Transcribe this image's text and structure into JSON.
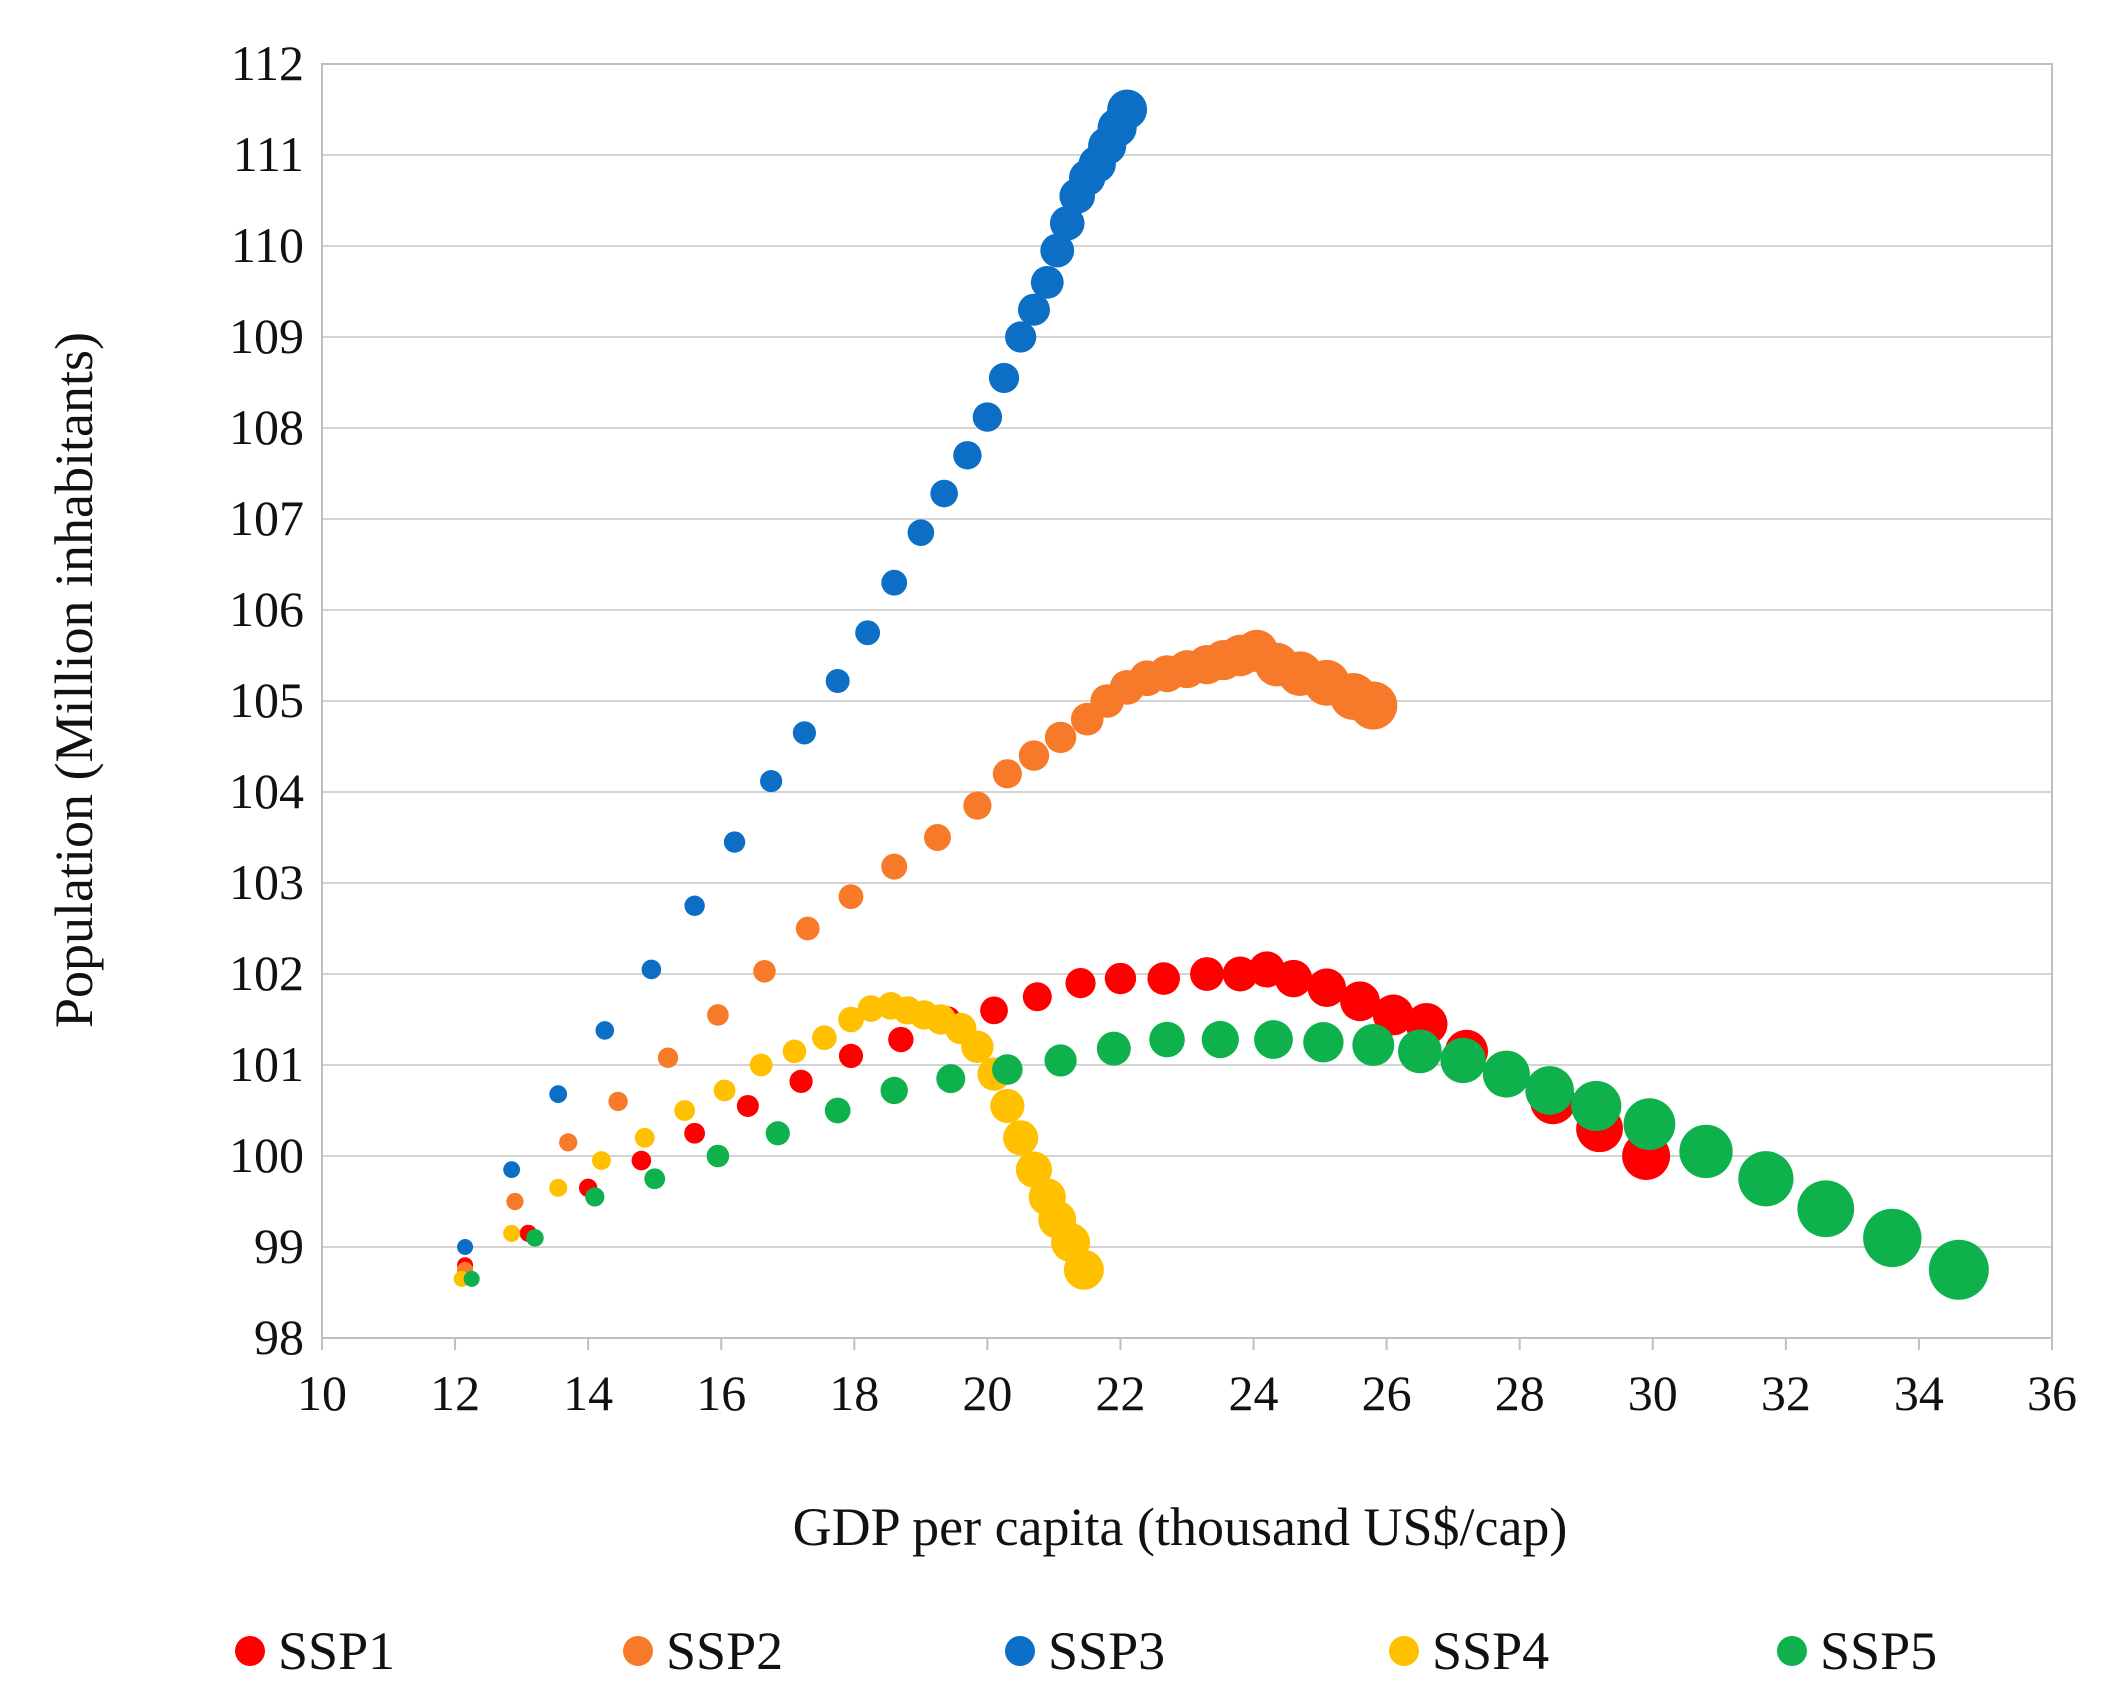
{
  "chart_data": {
    "type": "scatter",
    "title": "",
    "xlabel": "GDP per capita (thousand US$/cap)",
    "ylabel": "Population (Million inhabitants)",
    "xlim": [
      10,
      36
    ],
    "ylim": [
      98,
      112
    ],
    "xticks": [
      "10",
      "12",
      "14",
      "16",
      "18",
      "20",
      "22",
      "24",
      "26",
      "28",
      "30",
      "32",
      "34",
      "36"
    ],
    "yticks": [
      "98",
      "99",
      "100",
      "101",
      "102",
      "103",
      "104",
      "105",
      "106",
      "107",
      "108",
      "109",
      "110",
      "111",
      "112"
    ],
    "grid": "horizontal",
    "legend_position": "bottom",
    "marker_size_note": "marker size grows with time step",
    "series": [
      {
        "name": "SSP1",
        "color": "#ff0000",
        "x": [
          12.15,
          13.1,
          14.0,
          14.8,
          15.6,
          16.4,
          17.2,
          17.95,
          18.7,
          19.4,
          20.1,
          20.75,
          21.4,
          22.0,
          22.65,
          23.3,
          23.8,
          24.2,
          24.6,
          25.1,
          25.6,
          26.1,
          26.6,
          27.2,
          27.8,
          28.5,
          29.2,
          29.9
        ],
        "y": [
          98.8,
          99.15,
          99.65,
          99.95,
          100.25,
          100.55,
          100.82,
          101.1,
          101.28,
          101.5,
          101.6,
          101.75,
          101.9,
          101.95,
          101.95,
          102.0,
          102.0,
          102.05,
          101.95,
          101.85,
          101.7,
          101.55,
          101.45,
          101.15,
          100.9,
          100.6,
          100.3,
          100.0
        ]
      },
      {
        "name": "SSP2",
        "color": "#f77a2b",
        "x": [
          12.15,
          12.9,
          13.7,
          14.45,
          15.2,
          15.95,
          16.65,
          17.3,
          17.95,
          18.6,
          19.25,
          19.85,
          20.3,
          20.7,
          21.1,
          21.5,
          21.8,
          22.1,
          22.4,
          22.7,
          23.0,
          23.3,
          23.55,
          23.8,
          24.05,
          24.35,
          24.7,
          25.1,
          25.5,
          25.8
        ],
        "y": [
          98.75,
          99.5,
          100.15,
          100.6,
          101.08,
          101.55,
          102.03,
          102.5,
          102.85,
          103.18,
          103.5,
          103.85,
          104.2,
          104.4,
          104.6,
          104.8,
          105.0,
          105.15,
          105.25,
          105.3,
          105.35,
          105.4,
          105.45,
          105.5,
          105.55,
          105.4,
          105.3,
          105.2,
          105.05,
          104.95
        ]
      },
      {
        "name": "SSP3",
        "color": "#0d6ec6",
        "x": [
          12.15,
          12.85,
          13.55,
          14.25,
          14.95,
          15.6,
          16.2,
          16.75,
          17.25,
          17.75,
          18.2,
          18.6,
          19.0,
          19.35,
          19.7,
          20.0,
          20.25,
          20.5,
          20.7,
          20.9,
          21.05,
          21.2,
          21.35,
          21.5,
          21.65,
          21.8,
          21.95,
          22.1
        ],
        "y": [
          99.0,
          99.85,
          100.68,
          101.38,
          102.05,
          102.75,
          103.45,
          104.12,
          104.65,
          105.22,
          105.75,
          106.3,
          106.85,
          107.28,
          107.7,
          108.12,
          108.55,
          109.0,
          109.3,
          109.6,
          109.95,
          110.25,
          110.55,
          110.75,
          110.9,
          111.1,
          111.3,
          111.5
        ]
      },
      {
        "name": "SSP4",
        "color": "#ffc000",
        "x": [
          12.1,
          12.85,
          13.55,
          14.2,
          14.85,
          15.45,
          16.05,
          16.6,
          17.1,
          17.55,
          17.95,
          18.25,
          18.55,
          18.8,
          19.05,
          19.3,
          19.6,
          19.85,
          20.1,
          20.3,
          20.5,
          20.7,
          20.9,
          21.05,
          21.25,
          21.45
        ],
        "y": [
          98.65,
          99.15,
          99.65,
          99.95,
          100.2,
          100.5,
          100.72,
          101.0,
          101.15,
          101.3,
          101.5,
          101.62,
          101.65,
          101.6,
          101.55,
          101.5,
          101.4,
          101.2,
          100.9,
          100.55,
          100.2,
          99.85,
          99.55,
          99.3,
          99.05,
          98.75
        ]
      },
      {
        "name": "SSP5",
        "color": "#0fb14c",
        "x": [
          12.25,
          13.2,
          14.1,
          15.0,
          15.95,
          16.85,
          17.75,
          18.6,
          19.45,
          20.3,
          21.1,
          21.9,
          22.7,
          23.5,
          24.3,
          25.05,
          25.8,
          26.5,
          27.15,
          27.8,
          28.45,
          29.15,
          29.95,
          30.8,
          31.7,
          32.6,
          33.6,
          34.6
        ],
        "y": [
          98.65,
          99.1,
          99.55,
          99.75,
          100.0,
          100.25,
          100.5,
          100.72,
          100.85,
          100.95,
          101.05,
          101.18,
          101.28,
          101.28,
          101.28,
          101.25,
          101.22,
          101.15,
          101.05,
          100.9,
          100.72,
          100.55,
          100.35,
          100.05,
          99.75,
          99.42,
          99.1,
          98.75
        ]
      }
    ]
  }
}
